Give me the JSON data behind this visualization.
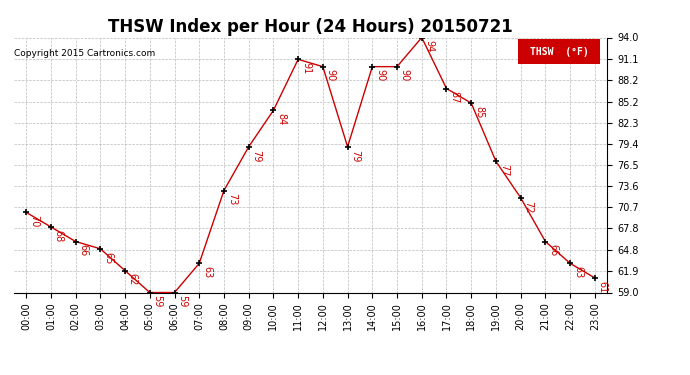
{
  "title": "THSW Index per Hour (24 Hours) 20150721",
  "copyright": "Copyright 2015 Cartronics.com",
  "legend_label": "THSW  (°F)",
  "hours": [
    "00:00",
    "01:00",
    "02:00",
    "03:00",
    "04:00",
    "05:00",
    "06:00",
    "07:00",
    "08:00",
    "09:00",
    "10:00",
    "11:00",
    "12:00",
    "13:00",
    "14:00",
    "15:00",
    "16:00",
    "17:00",
    "18:00",
    "19:00",
    "20:00",
    "21:00",
    "22:00",
    "23:00"
  ],
  "values": [
    70,
    68,
    66,
    65,
    62,
    59,
    59,
    63,
    73,
    79,
    84,
    91,
    90,
    79,
    90,
    90,
    94,
    87,
    85,
    77,
    72,
    66,
    63,
    61
  ],
  "ylim": [
    59.0,
    94.0
  ],
  "yticks": [
    59.0,
    61.9,
    64.8,
    67.8,
    70.7,
    73.6,
    76.5,
    79.4,
    82.3,
    85.2,
    88.2,
    91.1,
    94.0
  ],
  "line_color": "#cc0000",
  "marker_color": "#000000",
  "bg_color": "#ffffff",
  "grid_color": "#aaaaaa",
  "title_fontsize": 12,
  "tick_fontsize": 7,
  "annot_fontsize": 7,
  "legend_bg": "#cc0000",
  "legend_text_color": "#ffffff"
}
